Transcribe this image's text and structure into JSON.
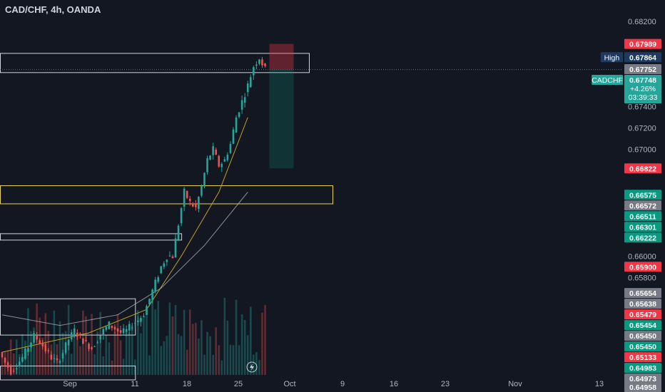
{
  "header": {
    "title": "CAD/CHF, 4h, OANDA"
  },
  "colors": {
    "background": "#131722",
    "up": "#26a69a",
    "down": "#ef5350",
    "ma_fast": "#c9a227",
    "ma_slow": "#b2b5be",
    "zone_yellow": "#e8d44d",
    "zone_white": "#d1d4dc"
  },
  "chart_data": {
    "type": "candlestick",
    "symbol": "CADCHF",
    "ylim": [
      0.649,
      0.6824
    ],
    "y_ticks": [
      "0.68200",
      "0.67400",
      "0.67200",
      "0.67000",
      "0.66000",
      "0.65800"
    ],
    "x_ticks": [
      "Sep",
      "11",
      "18",
      "25",
      "Oct",
      "9",
      "16",
      "23",
      "Nov",
      "13"
    ],
    "price_path": [
      [
        0.651,
        0.65,
        0.6492,
        0.6498,
        0.6505,
        0.6515,
        0.6525,
        0.652,
        0.6512,
        0.6505,
        0.65,
        0.651,
        0.6522,
        0.653,
        0.6524,
        0.6518,
        0.6514,
        0.6522,
        0.653,
        0.6536,
        0.6532,
        0.6528,
        0.653,
        0.6536,
        0.654,
        0.6546,
        0.656,
        0.6575,
        0.659,
        0.66
      ],
      [
        0.66,
        0.663,
        0.666,
        0.665,
        0.6645,
        0.6665,
        0.669,
        0.67,
        0.6685,
        0.669,
        0.6705,
        0.673,
        0.6745,
        0.676,
        0.6778,
        0.6786,
        0.6775
      ]
    ],
    "moving_averages": [
      {
        "name": "",
        "points": [
          [
            0,
            0.651
          ],
          [
            30,
            0.6528
          ],
          [
            50,
            0.655
          ],
          [
            62,
            0.66
          ],
          [
            75,
            0.666
          ],
          [
            85,
            0.673
          ]
        ]
      },
      {
        "name": "",
        "points": [
          [
            0,
            0.6545
          ],
          [
            20,
            0.6535
          ],
          [
            40,
            0.6545
          ],
          [
            55,
            0.657
          ],
          [
            70,
            0.661
          ],
          [
            85,
            0.666
          ]
        ]
      }
    ],
    "zones": [
      {
        "name": "supply-zone",
        "color": "zone_white",
        "top": 0.679,
        "bottom": 0.6772,
        "from": 0,
        "to": "end"
      },
      {
        "name": "demand-zone",
        "color": "zone_yellow",
        "top": 0.6666,
        "bottom": 0.6649,
        "from": 0,
        "to": "end"
      },
      {
        "name": "lower-zone",
        "color": "zone_white",
        "top": 0.6621,
        "bottom": 0.6615,
        "from": 0,
        "to": 62
      },
      {
        "name": "base-zone",
        "color": "zone_white",
        "top": 0.656,
        "bottom": 0.6526,
        "from": 0,
        "to": 46
      },
      {
        "name": "floor-zone",
        "color": "zone_white",
        "top": 0.6497,
        "bottom": 0.6484,
        "from": 0,
        "to": 46
      }
    ],
    "position": {
      "entry": 0.67748,
      "stop": 0.67989,
      "target": 0.66822
    },
    "current_price": 0.67748,
    "price_labels": [
      {
        "text": "0.67989",
        "value": 0.67989,
        "color": "#f23645"
      },
      {
        "text": "0.67864",
        "value": 0.67864,
        "color": "#1e3a5f",
        "caption": "High"
      },
      {
        "text": "0.67752",
        "value": 0.67752,
        "color": "#787b86"
      },
      {
        "text": "0.67748",
        "value": 0.67748,
        "color": "#26a69a",
        "caption": "CADCHF",
        "sub": [
          "+4.26%",
          "03:39:33"
        ]
      },
      {
        "text": "0.66822",
        "value": 0.66822,
        "color": "#f23645"
      },
      {
        "text": "0.66575",
        "value": 0.66575,
        "color": "#089981"
      },
      {
        "text": "0.66572",
        "value": 0.66572,
        "color": "#787b86"
      },
      {
        "text": "0.66511",
        "value": 0.66511,
        "color": "#089981"
      },
      {
        "text": "0.66301",
        "value": 0.66301,
        "color": "#089981"
      },
      {
        "text": "0.66222",
        "value": 0.66222,
        "color": "#089981"
      },
      {
        "text": "0.65900",
        "value": 0.659,
        "color": "#f23645"
      },
      {
        "text": "0.65654",
        "value": 0.65654,
        "color": "#787b86"
      },
      {
        "text": "0.65638",
        "value": 0.65638,
        "color": "#787b86"
      },
      {
        "text": "0.65479",
        "value": 0.65479,
        "color": "#f23645"
      },
      {
        "text": "0.65454",
        "value": 0.65454,
        "color": "#089981"
      },
      {
        "text": "0.65450",
        "value": 0.6545,
        "color": "#787b86"
      },
      {
        "text": "0.65450",
        "value": 0.6545,
        "color": "#089981"
      },
      {
        "text": "0.65133",
        "value": 0.65133,
        "color": "#f23645"
      },
      {
        "text": "0.64983",
        "value": 0.64983,
        "color": "#089981"
      },
      {
        "text": "0.64973",
        "value": 0.64973,
        "color": "#787b86"
      },
      {
        "text": "0.64958",
        "value": 0.64958,
        "color": "#787b86"
      }
    ]
  }
}
